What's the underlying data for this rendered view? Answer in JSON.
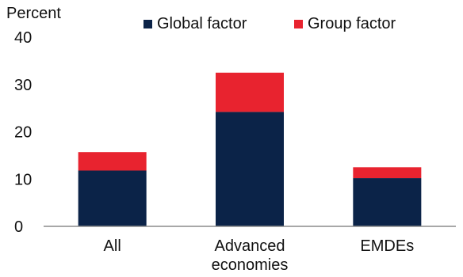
{
  "chart_data": {
    "type": "bar",
    "stacked": true,
    "unit_label": "Percent",
    "categories": [
      [
        "All"
      ],
      [
        "Advanced",
        "economies"
      ],
      [
        "EMDEs"
      ]
    ],
    "series": [
      {
        "name": "Global factor",
        "color": "#0b2348",
        "values": [
          11.8,
          24.2,
          10.2
        ]
      },
      {
        "name": "Group factor",
        "color": "#e8232f",
        "values": [
          3.9,
          8.3,
          2.3
        ]
      }
    ],
    "ylim": [
      0,
      40
    ],
    "yticks": [
      0,
      10,
      20,
      30,
      40
    ],
    "grid": false,
    "legend_position": "top"
  }
}
